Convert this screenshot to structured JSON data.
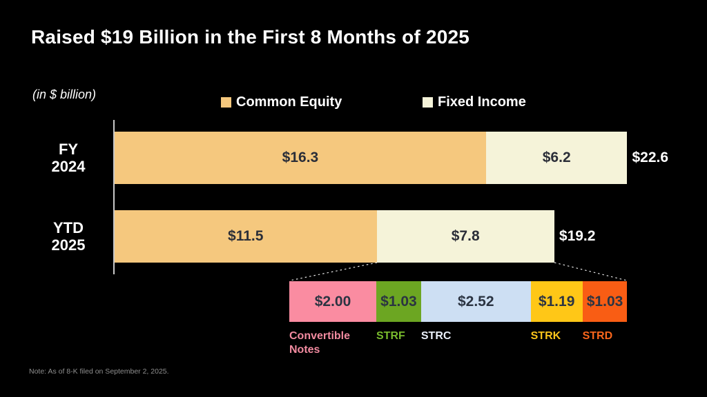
{
  "title": "Raised $19 Billion in the First 8 Months of 2025",
  "units_note": "(in $ billion)",
  "footnote": "Note: As of 8-K filed on September 2, 2025.",
  "colors": {
    "background": "#000000",
    "common_equity": "#F5C87E",
    "fixed_income": "#F5F3D9",
    "axis_line": "#C9C9C9",
    "in_bar_text": "#2B2E38",
    "connector": "#E6E6E6"
  },
  "legend": [
    {
      "label": "Common Equity",
      "color": "#F5C87E"
    },
    {
      "label": "Fixed Income",
      "color": "#F5F3D9"
    }
  ],
  "chart_data": {
    "type": "bar",
    "orientation": "horizontal",
    "stacked": true,
    "title": "Raised $19 Billion in the First 8 Months of 2025",
    "units": "$ billion",
    "xlim": [
      0,
      23
    ],
    "grid": false,
    "legend_position": "top",
    "categories": [
      "FY 2024",
      "YTD 2025"
    ],
    "category_lines": [
      [
        "FY",
        "2024"
      ],
      [
        "YTD",
        "2025"
      ]
    ],
    "series": [
      {
        "name": "Common Equity",
        "color": "#F5C87E",
        "values": [
          16.3,
          11.5
        ],
        "displays": [
          "$16.3",
          "$11.5"
        ]
      },
      {
        "name": "Fixed Income",
        "color": "#F5F3D9",
        "values": [
          6.2,
          7.8
        ],
        "displays": [
          "$6.2",
          "$7.8"
        ]
      }
    ],
    "total_values": [
      22.6,
      19.2
    ],
    "totals": [
      "$22.6",
      "$19.2"
    ],
    "breakdown": {
      "of": "YTD 2025 Fixed Income",
      "total_value": 7.77,
      "segments": [
        {
          "label": "Convertible Notes",
          "value": 2.0,
          "display": "$2.00",
          "color": "#FA8CA1",
          "label_color": "#F28BA0"
        },
        {
          "label": "STRF",
          "value": 1.03,
          "display": "$1.03",
          "color": "#6CA622",
          "label_color": "#79BB2D"
        },
        {
          "label": "STRC",
          "value": 2.52,
          "display": "$2.52",
          "color": "#CDDFF3",
          "label_color": "#EAF0FA"
        },
        {
          "label": "STRK",
          "value": 1.19,
          "display": "$1.19",
          "color": "#FFC717",
          "label_color": "#FBC51B"
        },
        {
          "label": "STRD",
          "value": 1.03,
          "display": "$1.03",
          "color": "#F95D14",
          "label_color": "#F9661C"
        }
      ]
    }
  }
}
